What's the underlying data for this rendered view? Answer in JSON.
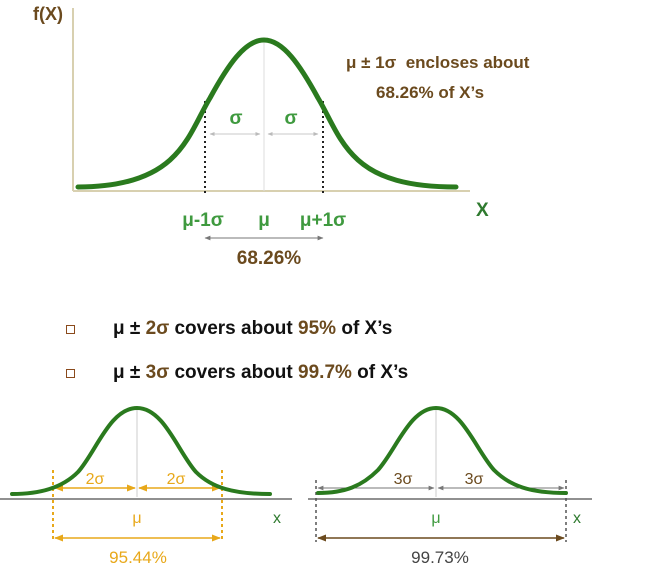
{
  "colors": {
    "curve": "#2a7a1e",
    "greek_green": "#3f9a3f",
    "brown": "#6b4a1e",
    "gold": "#e8a81a",
    "axis": "#d8d0b0",
    "dark": "#222222"
  },
  "top_panel": {
    "y_axis_label": "f(X)",
    "x_axis_label": "X",
    "annotation_line1": "μ ± 1σ  encloses about",
    "annotation_line2": "68.26% of X’s",
    "sigma_left": "σ",
    "sigma_right": "σ",
    "tick_minus": "μ-1σ",
    "tick_mu": "μ",
    "tick_plus": "μ+1σ",
    "percent": "68.26%"
  },
  "bullets": [
    {
      "prefix": "μ ± ",
      "k": "2σ",
      "mid": " covers about ",
      "pct": "95%",
      "suffix": " of X’s"
    },
    {
      "prefix": "μ ± ",
      "k": "3σ",
      "mid": " covers about ",
      "pct": "99.7%",
      "suffix": " of X’s"
    }
  ],
  "bottom_left": {
    "left_label": "2σ",
    "right_label": "2σ",
    "mu": "μ",
    "x_label": "x",
    "percent": "95.44%"
  },
  "bottom_right": {
    "left_label": "3σ",
    "right_label": "3σ",
    "mu": "μ",
    "x_label": "x",
    "percent": "99.73%"
  }
}
